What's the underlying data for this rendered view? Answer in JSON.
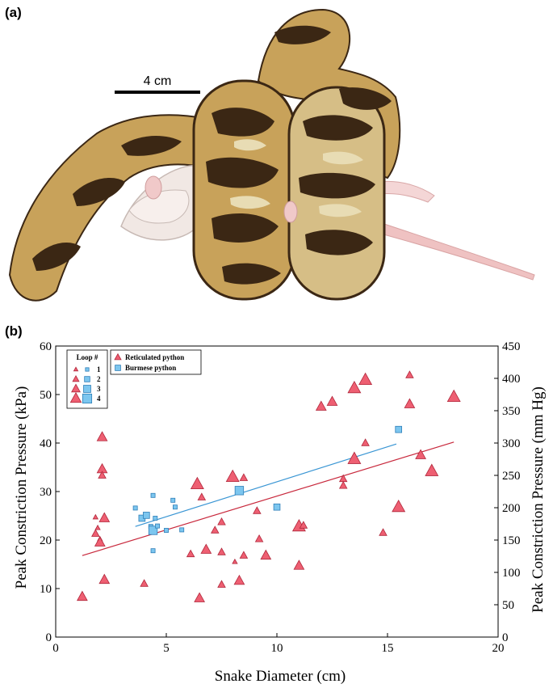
{
  "panel_a": {
    "label": "(a)",
    "scale_bar_label": "4 cm",
    "colors": {
      "snake_dark": "#3b2714",
      "snake_tan": "#c8a25a",
      "snake_light": "#e8dcb4",
      "rat": "#f1e8e4",
      "tail": "#f0c4c4"
    }
  },
  "panel_b": {
    "label": "(b)"
  },
  "chart_data": {
    "type": "scatter",
    "xlabel": "Snake Diameter (cm)",
    "ylabel": "Peak Constriction Pressure (kPa)",
    "y2label": "Peak Constriction Pressure (mm Hg)",
    "xlim": [
      0,
      20
    ],
    "ylim": [
      0,
      60
    ],
    "y2lim": [
      0,
      450
    ],
    "xticks": [
      "0",
      "5",
      "10",
      "15",
      "20"
    ],
    "yticks": [
      "0",
      "10",
      "20",
      "30",
      "40",
      "50",
      "60"
    ],
    "y2ticks": [
      "0",
      "50",
      "100",
      "150",
      "200",
      "250",
      "300",
      "350",
      "400",
      "450"
    ],
    "grid": false,
    "legend_loop": {
      "title": "Loop #",
      "entries": [
        "1",
        "2",
        "3",
        "4"
      ],
      "position": "top-left"
    },
    "legend_species": {
      "entries": [
        "Reticulated python",
        "Burmese python"
      ],
      "position": "top-left"
    },
    "colors": {
      "reticulated": "#ee5f72",
      "reticulated_edge": "#b0263a",
      "burmese": "#7cc6ef",
      "burmese_edge": "#2f7fb8",
      "reticulated_line": "#c8283c",
      "burmese_line": "#3a96d4"
    },
    "series": [
      {
        "name": "Reticulated python",
        "marker": "triangle",
        "points": [
          {
            "x": 1.2,
            "y": 8.3,
            "loop": 3
          },
          {
            "x": 1.8,
            "y": 24.7,
            "loop": 1
          },
          {
            "x": 1.8,
            "y": 21.3,
            "loop": 2
          },
          {
            "x": 1.9,
            "y": 22.5,
            "loop": 1
          },
          {
            "x": 2.0,
            "y": 20.2,
            "loop": 1
          },
          {
            "x": 2.0,
            "y": 19.5,
            "loop": 3
          },
          {
            "x": 2.1,
            "y": 41.2,
            "loop": 3
          },
          {
            "x": 2.1,
            "y": 34.6,
            "loop": 3
          },
          {
            "x": 2.1,
            "y": 33.3,
            "loop": 2
          },
          {
            "x": 2.2,
            "y": 24.5,
            "loop": 3
          },
          {
            "x": 2.2,
            "y": 11.8,
            "loop": 3
          },
          {
            "x": 4.0,
            "y": 11.0,
            "loop": 2
          },
          {
            "x": 6.1,
            "y": 17.1,
            "loop": 2
          },
          {
            "x": 6.4,
            "y": 31.5,
            "loop": 4
          },
          {
            "x": 6.5,
            "y": 8.0,
            "loop": 3
          },
          {
            "x": 6.6,
            "y": 28.8,
            "loop": 2
          },
          {
            "x": 6.8,
            "y": 18.0,
            "loop": 3
          },
          {
            "x": 7.2,
            "y": 22.0,
            "loop": 2
          },
          {
            "x": 7.5,
            "y": 10.8,
            "loop": 2
          },
          {
            "x": 7.5,
            "y": 23.7,
            "loop": 2
          },
          {
            "x": 7.5,
            "y": 17.5,
            "loop": 2
          },
          {
            "x": 8.0,
            "y": 33.0,
            "loop": 4
          },
          {
            "x": 8.1,
            "y": 15.5,
            "loop": 1
          },
          {
            "x": 8.3,
            "y": 11.6,
            "loop": 3
          },
          {
            "x": 8.5,
            "y": 32.8,
            "loop": 2
          },
          {
            "x": 8.5,
            "y": 16.8,
            "loop": 2
          },
          {
            "x": 9.1,
            "y": 26.0,
            "loop": 2
          },
          {
            "x": 9.2,
            "y": 20.2,
            "loop": 2
          },
          {
            "x": 9.5,
            "y": 16.8,
            "loop": 3
          },
          {
            "x": 11.0,
            "y": 22.8,
            "loop": 4
          },
          {
            "x": 11.0,
            "y": 14.7,
            "loop": 3
          },
          {
            "x": 11.2,
            "y": 23.0,
            "loop": 2
          },
          {
            "x": 12.0,
            "y": 47.5,
            "loop": 3
          },
          {
            "x": 12.5,
            "y": 48.5,
            "loop": 3
          },
          {
            "x": 13.0,
            "y": 32.6,
            "loop": 2
          },
          {
            "x": 13.0,
            "y": 31.2,
            "loop": 2
          },
          {
            "x": 13.5,
            "y": 51.3,
            "loop": 4
          },
          {
            "x": 13.5,
            "y": 36.7,
            "loop": 4
          },
          {
            "x": 14.0,
            "y": 53.0,
            "loop": 4
          },
          {
            "x": 14.0,
            "y": 40.0,
            "loop": 2
          },
          {
            "x": 14.8,
            "y": 21.5,
            "loop": 2
          },
          {
            "x": 15.5,
            "y": 26.8,
            "loop": 4
          },
          {
            "x": 16.0,
            "y": 54.0,
            "loop": 2
          },
          {
            "x": 16.0,
            "y": 48.0,
            "loop": 3
          },
          {
            "x": 16.5,
            "y": 37.5,
            "loop": 3
          },
          {
            "x": 17.0,
            "y": 34.2,
            "loop": 4
          },
          {
            "x": 18.0,
            "y": 49.5,
            "loop": 4
          }
        ],
        "trend": {
          "x": [
            1.2,
            18.0
          ],
          "y": [
            16.8,
            40.2
          ]
        }
      },
      {
        "name": "Burmese python",
        "marker": "square",
        "points": [
          {
            "x": 3.6,
            "y": 26.6,
            "loop": 1
          },
          {
            "x": 3.9,
            "y": 24.5,
            "loop": 2
          },
          {
            "x": 4.1,
            "y": 25.1,
            "loop": 2
          },
          {
            "x": 4.3,
            "y": 22.8,
            "loop": 1
          },
          {
            "x": 4.4,
            "y": 29.2,
            "loop": 1
          },
          {
            "x": 4.4,
            "y": 22.0,
            "loop": 3
          },
          {
            "x": 4.4,
            "y": 17.8,
            "loop": 1
          },
          {
            "x": 4.5,
            "y": 24.5,
            "loop": 1
          },
          {
            "x": 4.6,
            "y": 22.9,
            "loop": 1
          },
          {
            "x": 5.0,
            "y": 22.0,
            "loop": 1
          },
          {
            "x": 5.3,
            "y": 28.2,
            "loop": 1
          },
          {
            "x": 5.4,
            "y": 26.8,
            "loop": 1
          },
          {
            "x": 5.7,
            "y": 22.1,
            "loop": 1
          },
          {
            "x": 8.3,
            "y": 30.2,
            "loop": 3
          },
          {
            "x": 10.0,
            "y": 26.8,
            "loop": 2
          },
          {
            "x": 15.5,
            "y": 42.8,
            "loop": 2
          }
        ],
        "trend": {
          "x": [
            3.6,
            15.4
          ],
          "y": [
            22.8,
            39.8
          ]
        }
      }
    ]
  }
}
